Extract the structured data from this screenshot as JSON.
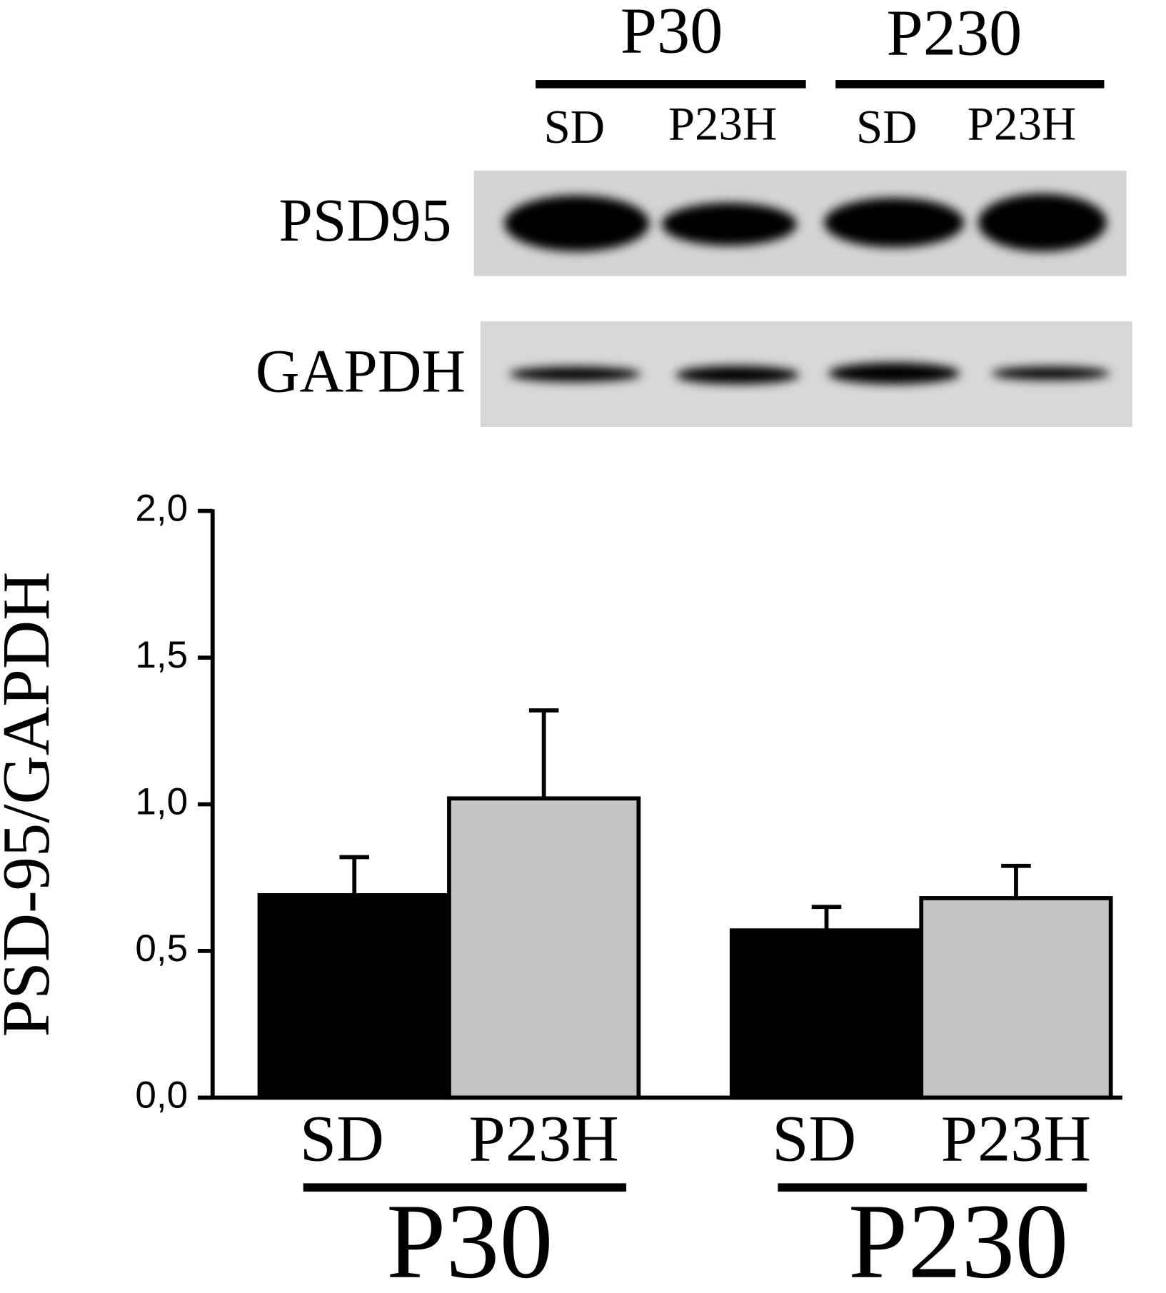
{
  "chart_data": {
    "type": "bar",
    "y_label": "PSD-95/GAPDH",
    "categories": [
      "P30",
      "P230"
    ],
    "series": [
      {
        "name": "SD",
        "color": "#000000",
        "values": [
          0.69,
          0.57
        ],
        "errors": [
          0.13,
          0.08
        ]
      },
      {
        "name": "P23H",
        "color": "#c4c4c4",
        "values": [
          1.02,
          0.68
        ],
        "errors": [
          0.3,
          0.11
        ]
      }
    ],
    "ylim": [
      0,
      2
    ],
    "yticks": [
      {
        "value": 0,
        "label": "0,0"
      },
      {
        "value": 0.5,
        "label": "0,5"
      },
      {
        "value": 1,
        "label": "1,0"
      },
      {
        "value": 1.5,
        "label": "1,5"
      },
      {
        "value": 2,
        "label": "2,0"
      }
    ]
  },
  "blot": {
    "groups": [
      "P30",
      "P230"
    ],
    "lanes": [
      "SD",
      "P23H",
      "SD",
      "P23H"
    ],
    "bands": [
      "PSD95",
      "GAPDH"
    ]
  }
}
